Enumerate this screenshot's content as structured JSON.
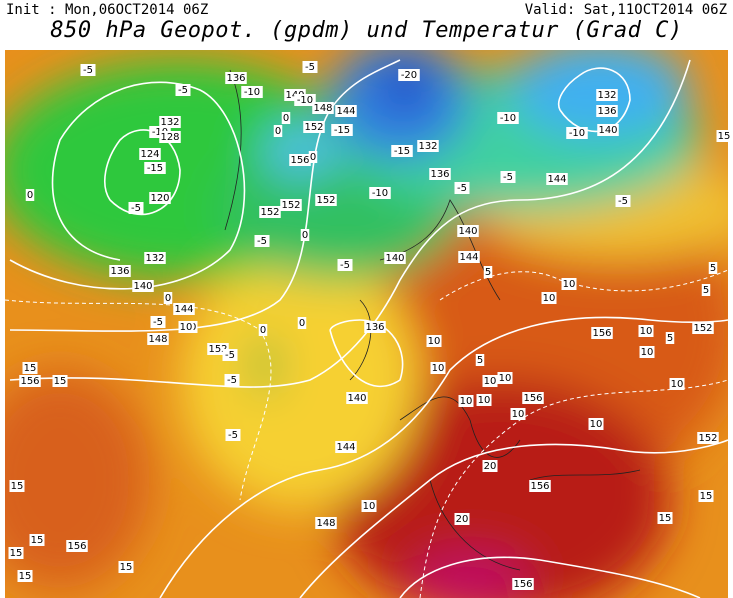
{
  "header": {
    "init": "Init : Mon,06OCT2014 06Z",
    "valid": "Valid: Sat,11OCT2014 06Z",
    "title": "850 hPa Geopot. (gpdm) und Temperatur (Grad C)"
  },
  "contour_labels": [
    "-5",
    "136",
    "-10",
    "-5",
    "132",
    "-10",
    "128",
    "124",
    "-15",
    "120",
    "0",
    "-5",
    "132",
    "136",
    "140",
    "0",
    "144",
    "-5",
    "10",
    "148",
    "152",
    "-5",
    "0",
    "-5",
    "15",
    "156",
    "15",
    "-5",
    "-5",
    "140",
    "-10",
    "148",
    "144",
    "-15",
    "152",
    "0",
    "0",
    "156",
    "0",
    "152",
    "152",
    "152",
    "-5",
    "0",
    "-5",
    "0",
    "-20",
    "-15",
    "132",
    "-10",
    "136",
    "-5",
    "-5",
    "144",
    "132",
    "136",
    "140",
    "-10",
    "-10",
    "-5",
    "140",
    "140",
    "144",
    "5",
    "10",
    "10",
    "5",
    "5",
    "15",
    "136",
    "10",
    "10",
    "5",
    "140",
    "10",
    "10",
    "10",
    "10",
    "156",
    "10",
    "10",
    "156",
    "10",
    "10",
    "5",
    "10",
    "152",
    "152",
    "144",
    "10",
    "148",
    "20",
    "156",
    "15",
    "15",
    "20",
    "156",
    "15",
    "15",
    "156",
    "15",
    "15",
    "15",
    "10"
  ]
}
